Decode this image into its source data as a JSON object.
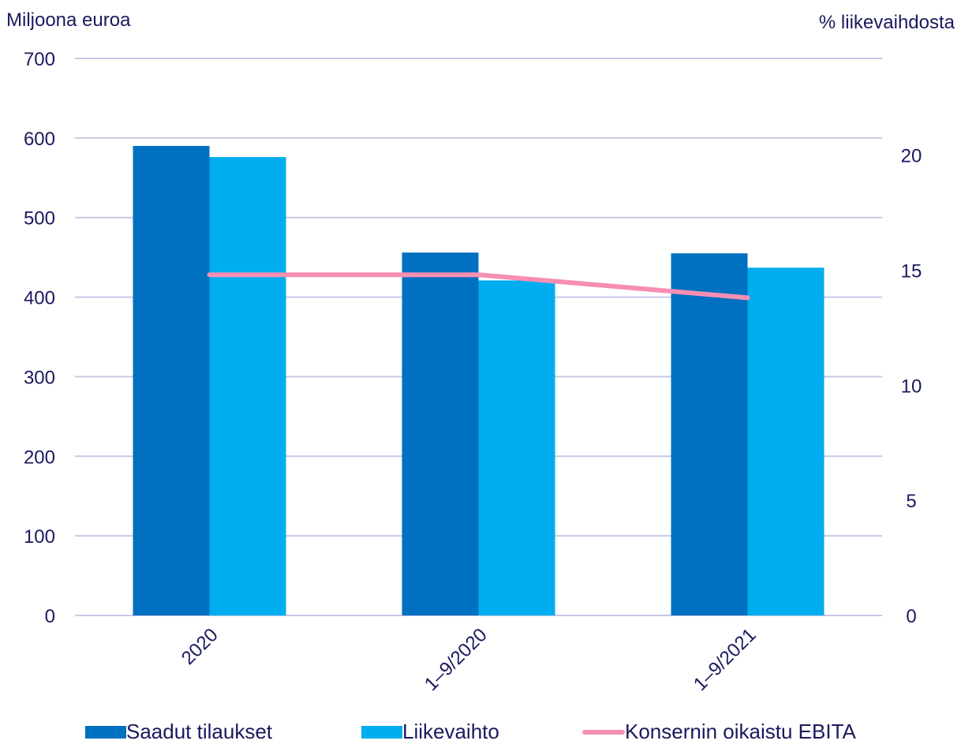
{
  "chart_data": {
    "type": "bar",
    "left_axis_title": "Miljoona euroa",
    "right_axis_title": "% liikevaihdosta",
    "categories": [
      "2020",
      "1–9/2020",
      "1–9/2021"
    ],
    "ylim": [
      0,
      700
    ],
    "yticks": [
      0,
      100,
      200,
      300,
      400,
      500,
      600,
      700
    ],
    "y2lim": [
      0,
      24.2
    ],
    "y2ticks": [
      0,
      5,
      10,
      15,
      20
    ],
    "grid": true,
    "legend_position": "bottom",
    "series": [
      {
        "name": "Saadut tilaukset",
        "kind": "bar",
        "axis": "left",
        "color": "#0070c0",
        "values": [
          590,
          456,
          455
        ]
      },
      {
        "name": "Liikevaihto",
        "kind": "bar",
        "axis": "left",
        "color": "#00adef",
        "values": [
          576,
          421,
          437
        ]
      },
      {
        "name": "Konsernin oikaistu EBITA",
        "kind": "line",
        "axis": "right",
        "color": "#f78fb3",
        "values": [
          14.8,
          14.8,
          13.8
        ]
      }
    ]
  }
}
